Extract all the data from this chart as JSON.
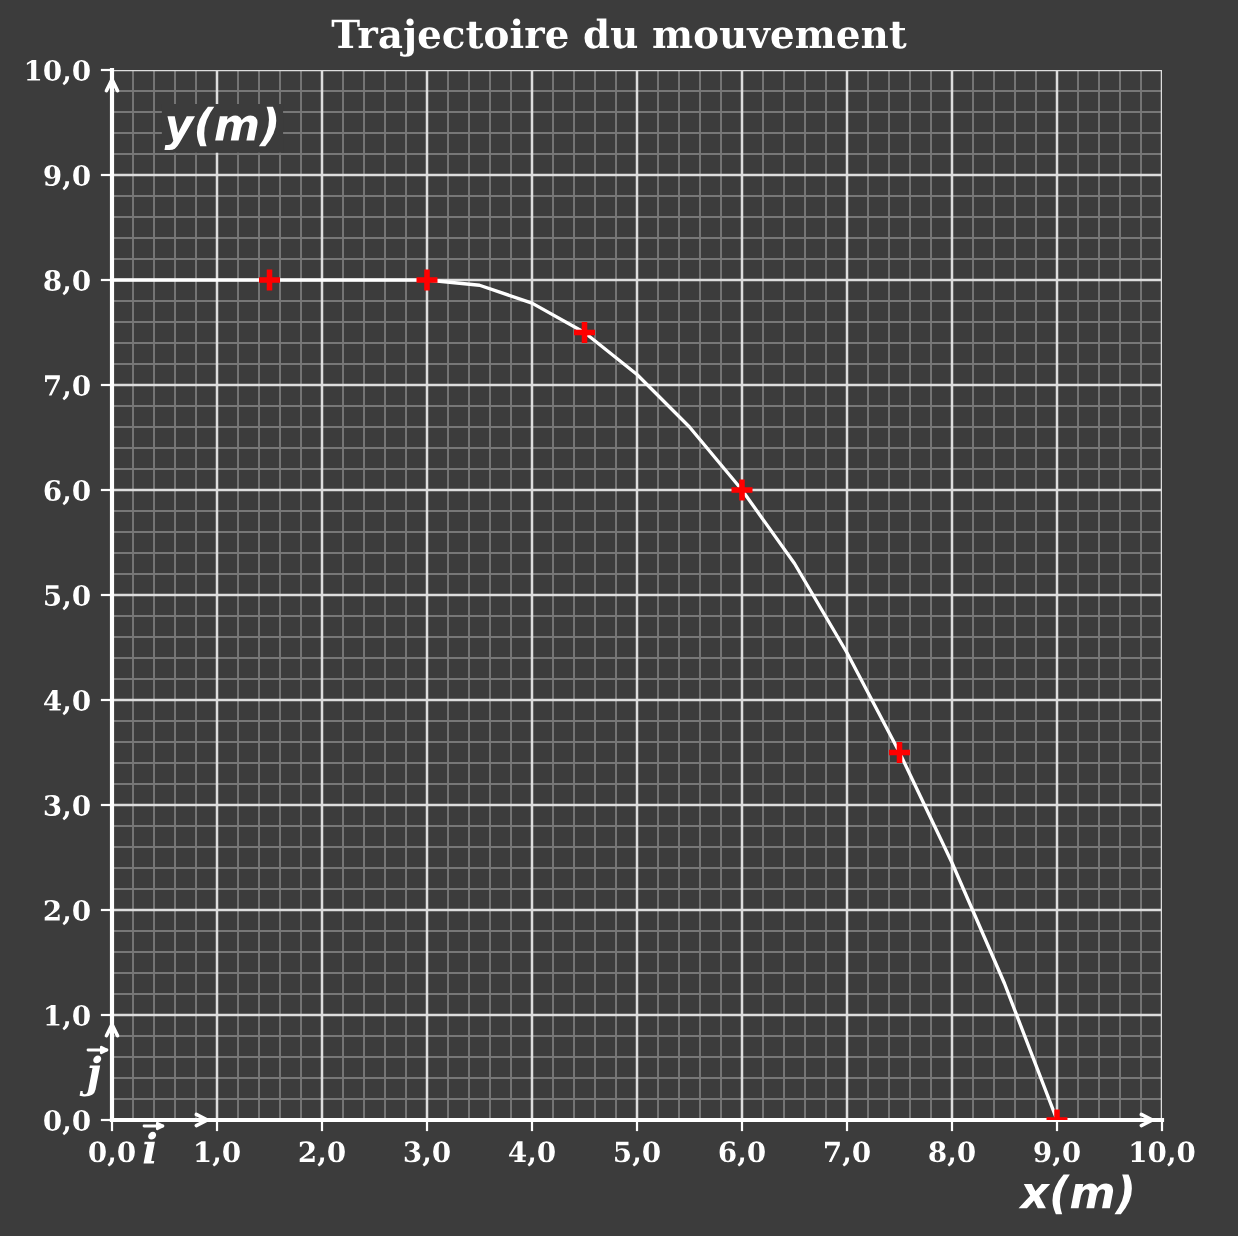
{
  "chart_data": {
    "type": "line",
    "title": "Trajectoire du mouvement",
    "xlabel": "x(m)",
    "ylabel": "y(m)",
    "annotations": [
      "i",
      "j"
    ],
    "series": [
      {
        "color": "#ffffff",
        "x": [
          0,
          0.5,
          1.0,
          1.5,
          2.0,
          2.5,
          3.0,
          3.5,
          4.0,
          4.5,
          5.0,
          5.5,
          6.0,
          6.5,
          7.0,
          7.5,
          8.0,
          8.5,
          9.0
        ],
        "values": [
          8.0,
          8.0,
          8.0,
          8.0,
          8.0,
          8.0,
          8.0,
          7.95,
          7.78,
          7.5,
          7.1,
          6.6,
          6.0,
          5.3,
          4.45,
          3.5,
          2.45,
          1.3,
          0.0
        ]
      },
      {
        "type": "scatter",
        "color": "#ff0000",
        "x": [
          1.5,
          3.0,
          4.5,
          6.0,
          7.5,
          9.0
        ],
        "values": [
          8.0,
          8.0,
          7.5,
          6.0,
          3.5,
          0.0
        ],
        "errors": [
          0.1,
          0.1,
          0.1,
          0.1,
          0.1,
          0.1
        ],
        "xerrors": [
          0.1,
          0.1,
          0.1,
          0.1,
          0.1,
          0.1
        ]
      }
    ],
    "xlim": [
      0,
      10
    ],
    "ylim": [
      0,
      10
    ],
    "xticks": [
      {
        "value": 0,
        "label": "0,0"
      },
      {
        "value": 1,
        "label": "1,0"
      },
      {
        "value": 2,
        "label": "2,0"
      },
      {
        "value": 3,
        "label": "3,0"
      },
      {
        "value": 4,
        "label": "4,0"
      },
      {
        "value": 5,
        "label": "5,0"
      },
      {
        "value": 6,
        "label": "6,0"
      },
      {
        "value": 7,
        "label": "7,0"
      },
      {
        "value": 8,
        "label": "8,0"
      },
      {
        "value": 9,
        "label": "9,0"
      },
      {
        "value": 10,
        "label": "10,0"
      }
    ],
    "yticks": [
      {
        "value": 0,
        "label": "0,0"
      },
      {
        "value": 1,
        "label": "1,0"
      },
      {
        "value": 2,
        "label": "2,0"
      },
      {
        "value": 3,
        "label": "3,0"
      },
      {
        "value": 4,
        "label": "4,0"
      },
      {
        "value": 5,
        "label": "5,0"
      },
      {
        "value": 6,
        "label": "6,0"
      },
      {
        "value": 7,
        "label": "7,0"
      },
      {
        "value": 8,
        "label": "8,0"
      },
      {
        "value": 9,
        "label": "9,0"
      },
      {
        "value": 10,
        "label": "10,0"
      }
    ],
    "grid": true
  }
}
